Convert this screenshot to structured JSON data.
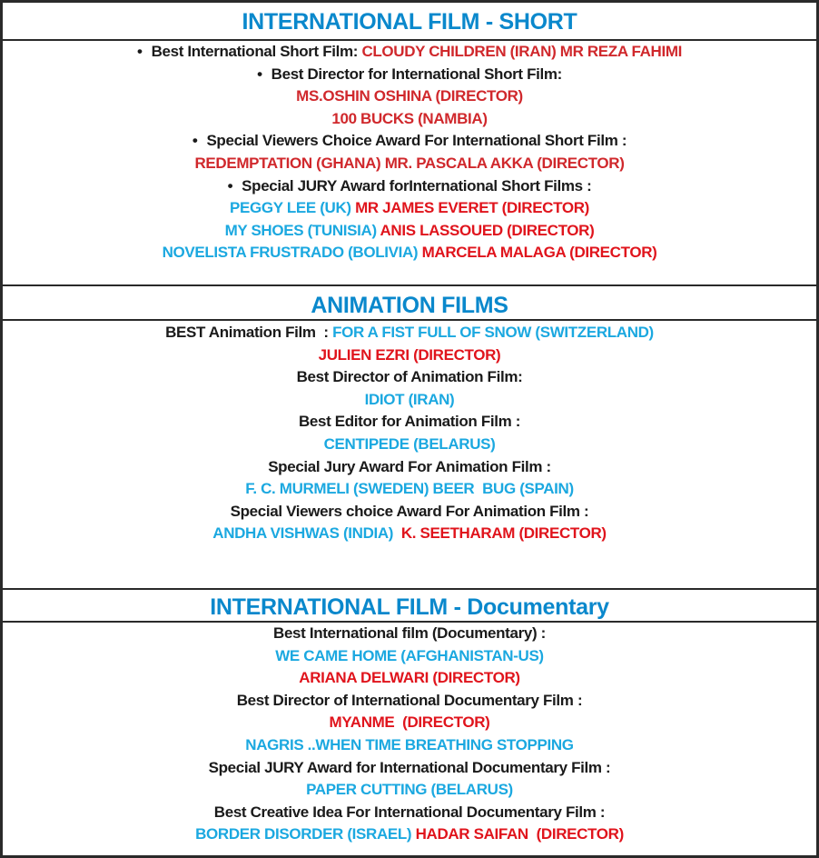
{
  "colors": {
    "title": "#0a88cc",
    "label": "#1a1a1a",
    "red": "#e0141c",
    "dark_red": "#d0282c",
    "blue": "#1ba8e0",
    "border": "#2a2a2a"
  },
  "sections": [
    {
      "title": "INTERNATIONAL FILM  -  SHORT",
      "lines": [
        {
          "bullet": "•",
          "segments": [
            {
              "text": "Best International Short Film: ",
              "color": "label"
            },
            {
              "text": "CLOUDY CHILDREN (IRAN) MR REZA FAHIMI",
              "color": "dark_red"
            }
          ]
        },
        {
          "bullet": "•",
          "segments": [
            {
              "text": "Best Director for International Short Film:",
              "color": "label"
            }
          ]
        },
        {
          "segments": [
            {
              "text": "MS.OSHIN OSHINA (DIRECTOR)",
              "color": "dark_red"
            }
          ]
        },
        {
          "segments": [
            {
              "text": "100 BUCKS (NAMBIA)",
              "color": "dark_red"
            }
          ]
        },
        {
          "bullet": "•",
          "segments": [
            {
              "text": "Special Viewers Choice Award For International Short Film :",
              "color": "label"
            }
          ]
        },
        {
          "segments": [
            {
              "text": "REDEMPTATION (GHANA) MR. PASCALA AKKA (DIRECTOR)",
              "color": "dark_red"
            }
          ]
        },
        {
          "bullet": "•",
          "segments": [
            {
              "text": "Special JURY Award forInternational Short Films :",
              "color": "label"
            }
          ]
        },
        {
          "segments": [
            {
              "text": "PEGGY LEE (UK) ",
              "color": "blue"
            },
            {
              "text": "MR JAMES EVERET (DIRECTOR)",
              "color": "red"
            }
          ]
        },
        {
          "segments": [
            {
              "text": "MY SHOES (TUNISIA) ",
              "color": "blue"
            },
            {
              "text": "ANIS LASSOUED (DIRECTOR)",
              "color": "red"
            }
          ]
        },
        {
          "segments": [
            {
              "text": "NOVELISTA FRUSTRADO (BOLIVIA) ",
              "color": "blue"
            },
            {
              "text": "MARCELA MALAGA (DIRECTOR)",
              "color": "red"
            }
          ]
        }
      ]
    },
    {
      "title": "ANIMATION FILMS",
      "lines": [
        {
          "segments": [
            {
              "text": "BEST Animation Film  : ",
              "color": "label"
            },
            {
              "text": "FOR A FIST FULL OF SNOW (SWITZERLAND)",
              "color": "blue"
            }
          ]
        },
        {
          "segments": [
            {
              "text": "JULIEN EZRI (DIRECTOR)",
              "color": "red"
            }
          ]
        },
        {
          "segments": [
            {
              "text": "Best Director of Animation Film:",
              "color": "label"
            }
          ]
        },
        {
          "segments": [
            {
              "text": "IDIOT (IRAN)",
              "color": "blue"
            }
          ]
        },
        {
          "segments": [
            {
              "text": "Best Editor for Animation Film :",
              "color": "label"
            }
          ]
        },
        {
          "segments": [
            {
              "text": "CENTIPEDE (BELARUS)",
              "color": "blue"
            }
          ]
        },
        {
          "segments": [
            {
              "text": "Special Jury Award For Animation Film :",
              "color": "label"
            }
          ]
        },
        {
          "segments": [
            {
              "text": "F. C. MURMELI (SWEDEN) BEER  BUG (SPAIN)",
              "color": "blue"
            }
          ]
        },
        {
          "segments": [
            {
              "text": "Special Viewers choice Award For Animation Film :",
              "color": "label"
            }
          ]
        },
        {
          "segments": [
            {
              "text": "ANDHA VISHWAS (INDIA)  ",
              "color": "blue"
            },
            {
              "text": "K. SEETHARAM (DIRECTOR)",
              "color": "red"
            }
          ]
        }
      ]
    },
    {
      "title": "INTERNATIONAL FILM  -  Documentary",
      "lines": [
        {
          "segments": [
            {
              "text": "Best International film (Documentary) :",
              "color": "label"
            }
          ]
        },
        {
          "segments": [
            {
              "text": "WE CAME HOME (AFGHANISTAN-US)",
              "color": "blue"
            }
          ]
        },
        {
          "segments": [
            {
              "text": "ARIANA DELWARI (DIRECTOR)",
              "color": "red"
            }
          ]
        },
        {
          "segments": [
            {
              "text": "Best Director of International Documentary Film :",
              "color": "label"
            }
          ]
        },
        {
          "segments": [
            {
              "text": "MYANME  (DIRECTOR)",
              "color": "red"
            }
          ]
        },
        {
          "segments": [
            {
              "text": "NAGRIS ..WHEN TIME BREATHING STOPPING",
              "color": "blue"
            }
          ]
        },
        {
          "segments": [
            {
              "text": "Special JURY Award for International Documentary Film :",
              "color": "label"
            }
          ]
        },
        {
          "segments": [
            {
              "text": "PAPER CUTTING (BELARUS)",
              "color": "blue"
            }
          ]
        },
        {
          "segments": [
            {
              "text": "Best Creative Idea For International Documentary Film :",
              "color": "label"
            }
          ]
        },
        {
          "segments": [
            {
              "text": "BORDER DISORDER (ISRAEL) ",
              "color": "blue"
            },
            {
              "text": "HADAR SAIFAN  (DIRECTOR)",
              "color": "red"
            }
          ]
        }
      ]
    }
  ]
}
